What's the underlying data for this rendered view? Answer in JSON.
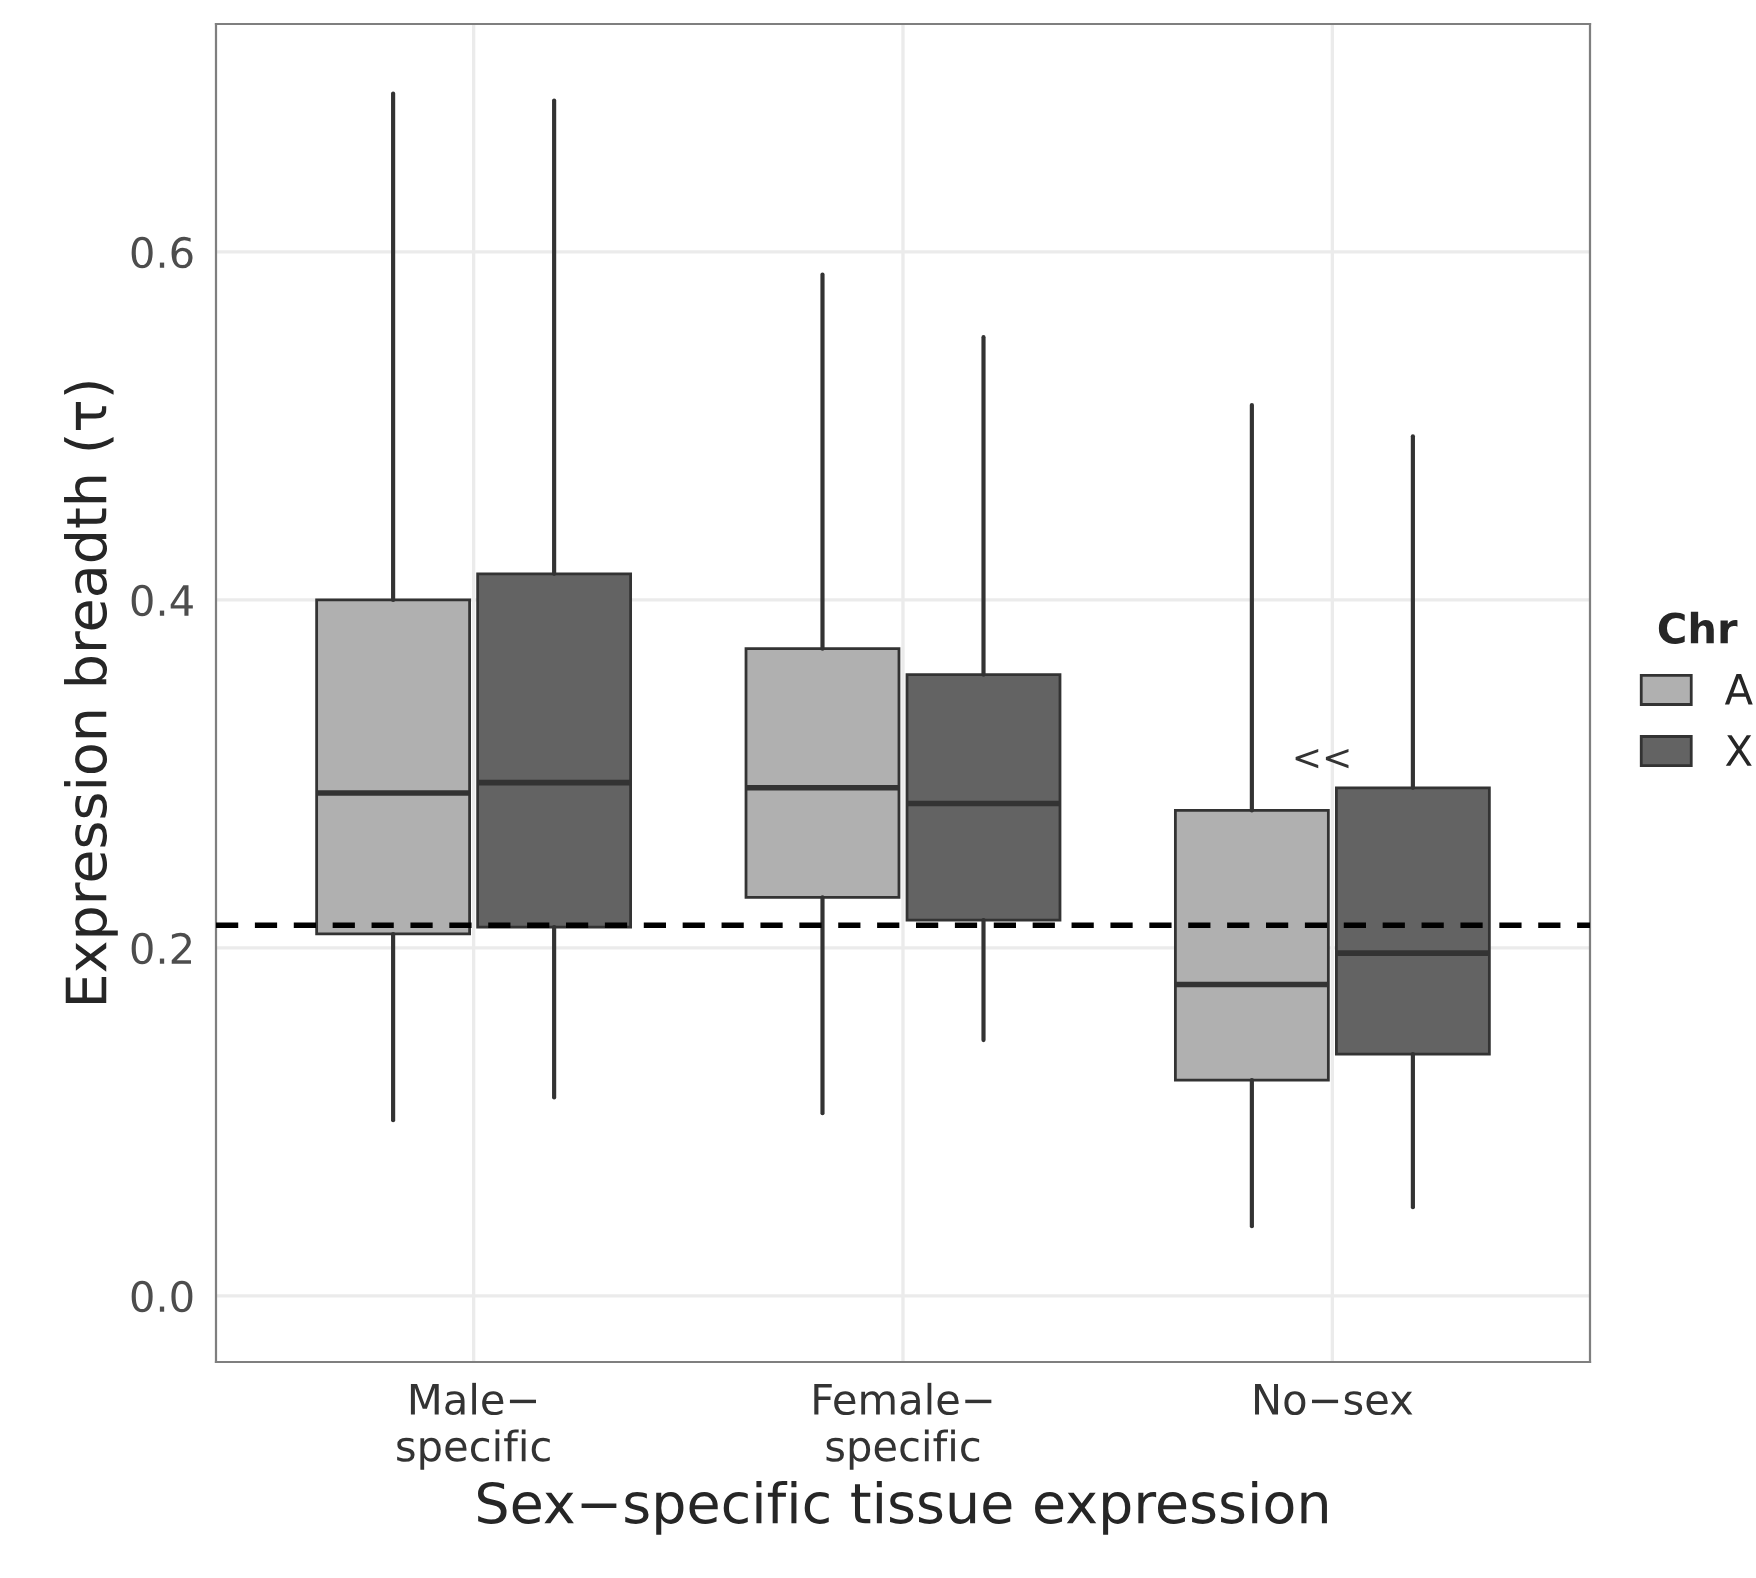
{
  "chart_data": {
    "type": "box",
    "xlabel": "Sex−specific tissue expression",
    "ylabel": "Expression breadth (τ)",
    "legend_title": "Chr",
    "legend": "right",
    "categories": [
      "Male−\nspecific",
      "Female−\nspecific",
      "No−sex"
    ],
    "ylim": [
      -0.038,
      0.731
    ],
    "yticks": [
      {
        "value": 0,
        "label": "0.0"
      },
      0.2,
      0.4,
      0.6
    ],
    "grid": true,
    "series": [
      {
        "name": "A",
        "color": "#b0b0b0",
        "boxes": [
          {
            "low": 0.101,
            "q1": 0.208,
            "median": 0.289,
            "q3": 0.4,
            "high": 0.691
          },
          {
            "low": 0.105,
            "q1": 0.229,
            "median": 0.292,
            "q3": 0.372,
            "high": 0.587
          },
          {
            "low": 0.04,
            "q1": 0.124,
            "median": 0.179,
            "q3": 0.279,
            "high": 0.512
          }
        ]
      },
      {
        "name": "X",
        "color": "#636363",
        "boxes": [
          {
            "low": 0.114,
            "q1": 0.212,
            "median": 0.295,
            "q3": 0.415,
            "high": 0.687
          },
          {
            "low": 0.147,
            "q1": 0.216,
            "median": 0.283,
            "q3": 0.357,
            "high": 0.551
          },
          {
            "low": 0.051,
            "q1": 0.139,
            "median": 0.197,
            "q3": 0.292,
            "high": 0.494
          }
        ]
      }
    ],
    "ref_lines": [
      {
        "axis": "y",
        "value": 0.213,
        "line_style": "dashed",
        "color": "#000000"
      }
    ],
    "annotations": [
      "<<"
    ]
  }
}
